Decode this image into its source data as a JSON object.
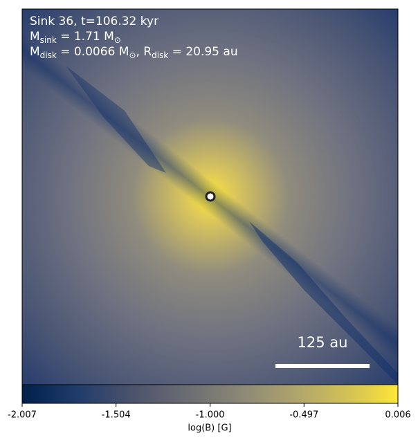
{
  "chart_data": {
    "type": "heatmap",
    "annotations": [
      [
        "Sink 36, t=106.32 kyr"
      ],
      [
        "M",
        "sink",
        " = 1.71 M",
        "⊙"
      ],
      [
        "M",
        "disk",
        " = 0.0066 M",
        "⊙",
        ", R",
        "disk",
        " = 20.95 au"
      ]
    ],
    "scale_bar": "125 au",
    "colorbar": {
      "label": "log(B) [G]",
      "clim": [
        -2.007,
        0.006
      ],
      "colormap": "cividis",
      "ticks": [
        -2.007,
        -1.504,
        {
          "value": -1,
          "label": "-1.000"
        },
        -0.497,
        0.006
      ]
    }
  }
}
